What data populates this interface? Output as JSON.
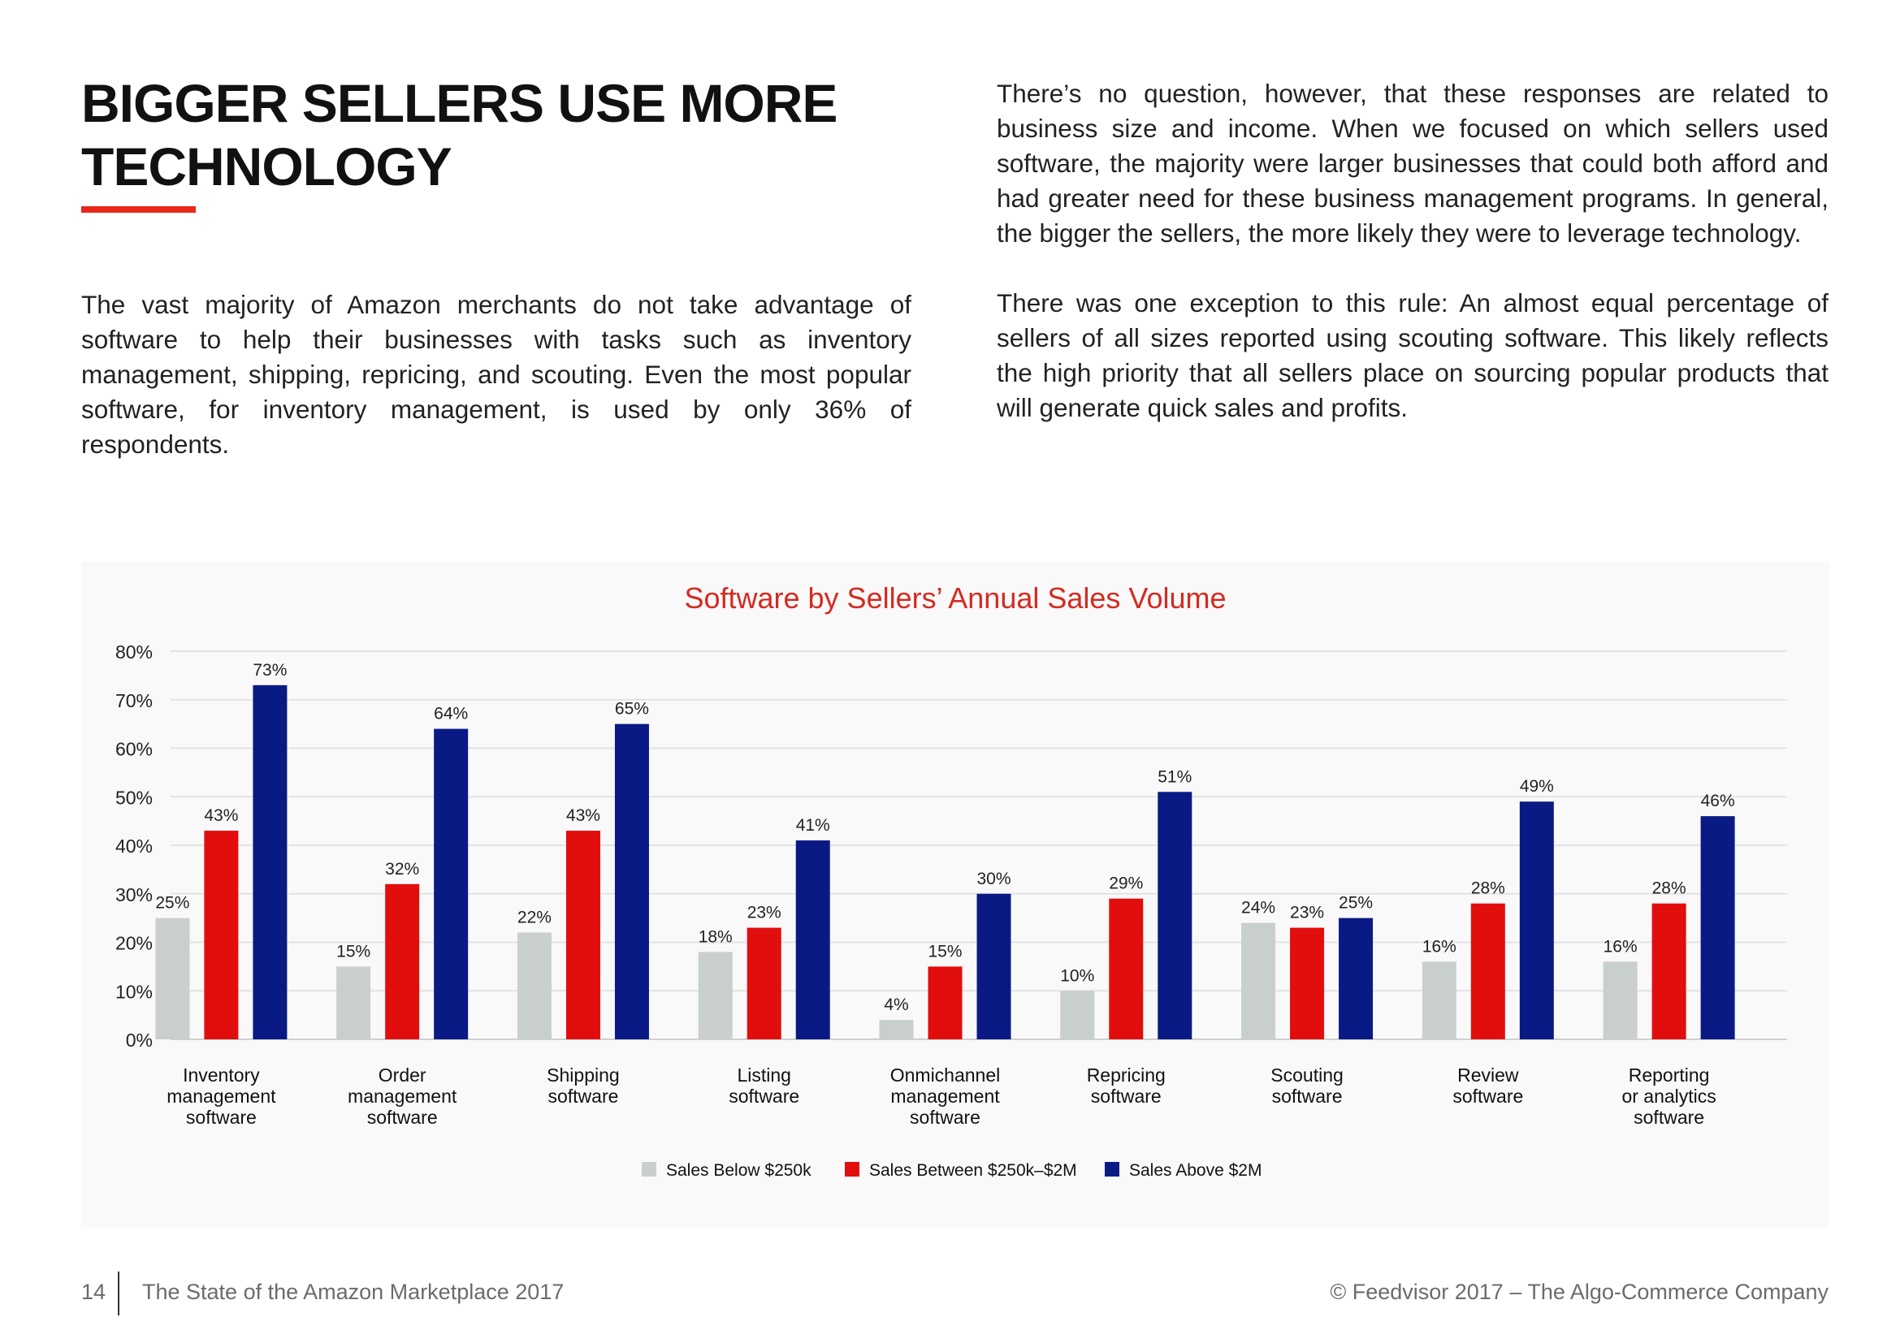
{
  "page": {
    "title": "BIGGER SELLERS USE MORE TECHNOLOGY",
    "accent_color": "#e8271b",
    "paragraph_left": "The vast majority of Amazon merchants do not take advantage of software to help their businesses with tasks such as inventory management, shipping, repricing, and scouting. Even the most popular software, for inventory management, is used by only 36% of respondents.",
    "paragraph_right_1": "There’s no question, however, that these responses are related to business size and income. When we focused on which sellers used software, the majority were larger businesses that could both afford and had greater need for these business management programs. In general, the bigger the sellers, the more likely they were to leverage technology.",
    "paragraph_right_2": "There was one exception to this rule: An almost equal percentage of sellers of all sizes reported using scouting software. This likely reflects the high priority that all sellers place on sourcing popular products that will generate quick sales and profits."
  },
  "chart_data": {
    "type": "bar",
    "title": "Software by Sellers’ Annual Sales Volume",
    "title_color": "#d42a20",
    "categories": [
      [
        "Inventory",
        "management",
        "software"
      ],
      [
        "Order",
        "management",
        "software"
      ],
      [
        "Shipping",
        "software"
      ],
      [
        "Listing",
        "software"
      ],
      [
        "Onmichannel",
        "management",
        "software"
      ],
      [
        "Repricing",
        "software"
      ],
      [
        "Scouting",
        "software"
      ],
      [
        "Review",
        "software"
      ],
      [
        "Reporting",
        "or analytics",
        "software"
      ]
    ],
    "series": [
      {
        "name": "Sales Below $250k",
        "color": "#c9cfcd",
        "values": [
          25,
          15,
          22,
          18,
          4,
          10,
          24,
          16,
          16
        ],
        "labels": [
          "25%",
          "15%",
          "22%",
          "18%",
          "4%",
          "10%",
          "24%",
          "16%",
          "16%"
        ]
      },
      {
        "name": "Sales Between $250k–$2M",
        "color": "#e20d0d",
        "values": [
          43,
          32,
          43,
          23,
          15,
          29,
          23,
          28,
          28
        ],
        "labels": [
          "43%",
          "32%",
          "43%",
          "23%",
          "15%",
          "29%",
          "23%",
          "28%",
          "28%"
        ]
      },
      {
        "name": "Sales Above $2M",
        "color": "#0a1a85",
        "values": [
          73,
          64,
          65,
          41,
          30,
          51,
          25,
          49,
          46
        ],
        "labels": [
          "73%",
          "64%",
          "65%",
          "41%",
          "30%",
          "51%",
          "25%",
          "49%",
          "46%"
        ]
      }
    ],
    "y_ticks": [
      "0%",
      "10%",
      "20%",
      "30%",
      "40%",
      "50%",
      "60%",
      "70%",
      "80%"
    ],
    "ylim": [
      0,
      80
    ],
    "grid": true,
    "legend_position": "bottom-center"
  },
  "footer": {
    "page_number": "14",
    "left_text": "The State of the Amazon Marketplace 2017",
    "right_text": "© Feedvisor 2017 – The Algo-Commerce Company"
  }
}
